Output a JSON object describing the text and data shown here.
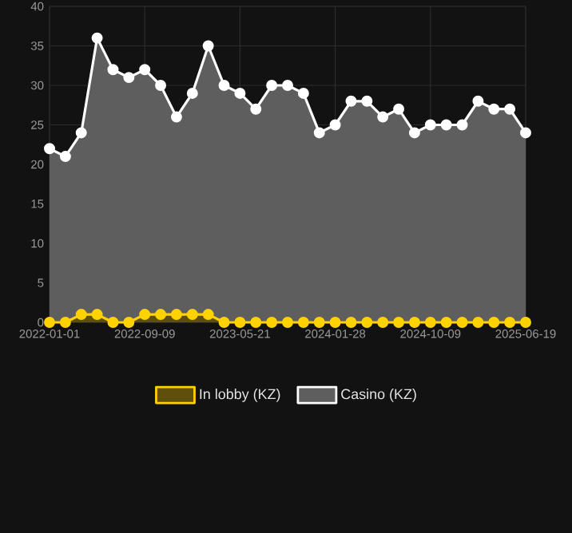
{
  "chart_data": {
    "type": "area",
    "categories": [
      "2022-01-01",
      null,
      null,
      null,
      null,
      null,
      "2022-09-09",
      null,
      null,
      null,
      null,
      null,
      "2023-05-21",
      null,
      null,
      null,
      null,
      null,
      "2024-01-28",
      null,
      null,
      null,
      null,
      null,
      "2024-10-09",
      null,
      null,
      null,
      null,
      null,
      "2025-06-19"
    ],
    "series": [
      {
        "name": "Casino (KZ)",
        "color": "#ffffff",
        "values": [
          22,
          21,
          24,
          36,
          32,
          31,
          32,
          30,
          26,
          29,
          35,
          30,
          29,
          27,
          30,
          30,
          29,
          24,
          25,
          28,
          28,
          26,
          27,
          24,
          25,
          25,
          25,
          28,
          27,
          27,
          24
        ]
      },
      {
        "name": "In lobby (KZ)",
        "color": "#ffd200",
        "values": [
          0,
          0,
          1,
          1,
          0,
          0,
          1,
          1,
          1,
          1,
          1,
          0,
          0,
          0,
          0,
          0,
          0,
          0,
          0,
          0,
          0,
          0,
          0,
          0,
          0,
          0,
          0,
          0,
          0,
          0,
          0
        ]
      }
    ],
    "ylim": [
      0,
      40
    ],
    "yticks": [
      0,
      5,
      10,
      15,
      20,
      25,
      30,
      35,
      40
    ],
    "grid": true,
    "legend": "bottom",
    "marker": "circle"
  }
}
